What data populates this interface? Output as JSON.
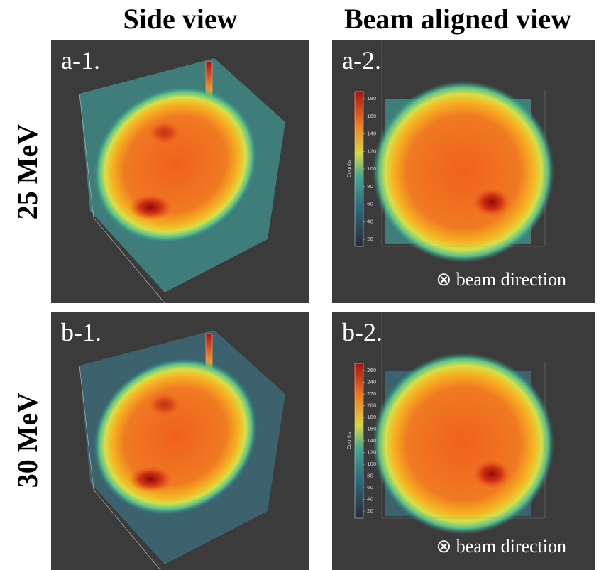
{
  "headers": [
    "Side view",
    "Beam aligned view"
  ],
  "rows": [
    "25 MeV",
    "30 MeV"
  ],
  "panels": [
    {
      "label": "a-1."
    },
    {
      "label": "a-2.",
      "colorbar": {
        "title": "Counts",
        "ticks": [
          20,
          40,
          60,
          80,
          100,
          120,
          140,
          160,
          180
        ]
      },
      "note": "⊗ beam direction"
    },
    {
      "label": "b-1."
    },
    {
      "label": "b-2.",
      "colorbar": {
        "title": "Counts",
        "ticks": [
          20,
          40,
          60,
          80,
          100,
          120,
          140,
          160,
          180,
          200,
          220,
          240,
          260
        ]
      },
      "note": "⊗ beam direction"
    }
  ]
}
